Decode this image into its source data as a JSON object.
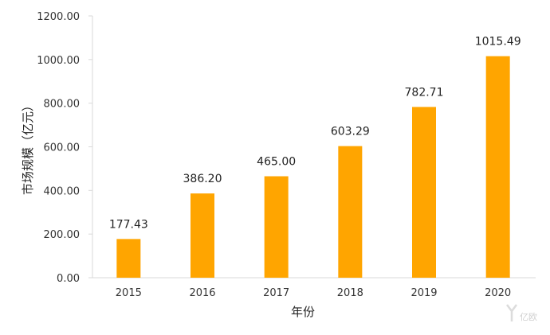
{
  "chart_data": {
    "type": "bar",
    "categories": [
      "2015",
      "2016",
      "2017",
      "2018",
      "2019",
      "2020"
    ],
    "values": [
      177.43,
      386.2,
      465.0,
      603.29,
      782.71,
      1015.49
    ],
    "value_labels": [
      "177.43",
      "386.20",
      "465.00",
      "603.29",
      "782.71",
      "1015.49"
    ],
    "xlabel": "年份",
    "ylabel": "市场规模（亿元）",
    "ylim": [
      0,
      1200
    ],
    "yticks": [
      0,
      200,
      400,
      600,
      800,
      1000,
      1200
    ],
    "ytick_labels": [
      "0.00",
      "200.00",
      "400.00",
      "600.00",
      "800.00",
      "1000.00",
      "1200.00"
    ],
    "grid": false,
    "bar_color": "#FFA500"
  },
  "watermark": {
    "text": "亿欧"
  }
}
